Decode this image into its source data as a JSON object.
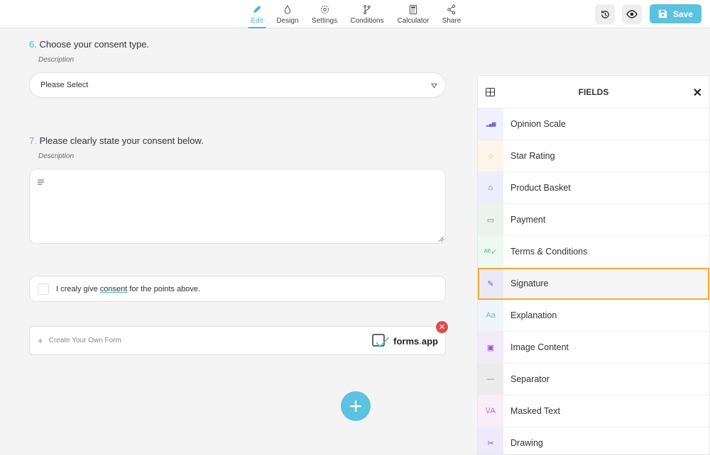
{
  "toolbar": {
    "tabs": [
      {
        "label": "Edit",
        "icon": "pencil-icon",
        "active": true
      },
      {
        "label": "Design",
        "icon": "drop-icon"
      },
      {
        "label": "Settings",
        "icon": "gear-icon"
      },
      {
        "label": "Conditions",
        "icon": "branch-icon"
      },
      {
        "label": "Calculator",
        "icon": "calculator-icon"
      },
      {
        "label": "Share",
        "icon": "share-icon"
      }
    ],
    "save_label": "Save",
    "accent": "#5bc2df"
  },
  "questions": [
    {
      "number": "6.",
      "title": "Choose your consent type.",
      "description": "Description",
      "select_value": "Please Select"
    },
    {
      "number": "7.",
      "title": "Please clearly state your consent below.",
      "description": "Description"
    }
  ],
  "consent": {
    "pre": "I crealy give ",
    "link": "consent",
    "post": " for the points above."
  },
  "branding": {
    "create_label": "Create Your Own Form",
    "logo_text": "forms",
    "logo_dot": ".",
    "logo_suffix": "app"
  },
  "fields_panel": {
    "title": "FIELDS",
    "items": [
      {
        "label": "Opinion Scale",
        "icon": "bar-chart-icon",
        "bg": "#f1f1fb",
        "color": "#6b6fd6"
      },
      {
        "label": "Star Rating",
        "icon": "star-icon",
        "bg": "#fdf5ec",
        "color": "#f0a840"
      },
      {
        "label": "Product Basket",
        "icon": "basket-icon",
        "bg": "#ededfb",
        "color": "#5a5fd0"
      },
      {
        "label": "Payment",
        "icon": "money-icon",
        "bg": "#eaf3ec",
        "color": "#3f9a5a"
      },
      {
        "label": "Terms & Conditions",
        "icon": "ab-check-icon",
        "bg": "#edf9f2",
        "color": "#4cc28a"
      },
      {
        "label": "Signature",
        "icon": "pen-nib-icon",
        "bg": "#ebe9f6",
        "color": "#6a55c9",
        "selected": true
      },
      {
        "label": "Explanation",
        "icon": "text-aa-icon",
        "bg": "#eef6fb",
        "color": "#6bb4de"
      },
      {
        "label": "Image Content",
        "icon": "image-icon",
        "bg": "#f3ebf7",
        "color": "#9a4fc2"
      },
      {
        "label": "Separator",
        "icon": "minus-icon",
        "bg": "#ececec",
        "color": "#888"
      },
      {
        "label": "Masked Text",
        "icon": "masked-text-icon",
        "bg": "#f8edf9",
        "color": "#c05ad2"
      },
      {
        "label": "Drawing",
        "icon": "drawing-icon",
        "bg": "#eeeafa",
        "color": "#6a55c9"
      }
    ]
  }
}
